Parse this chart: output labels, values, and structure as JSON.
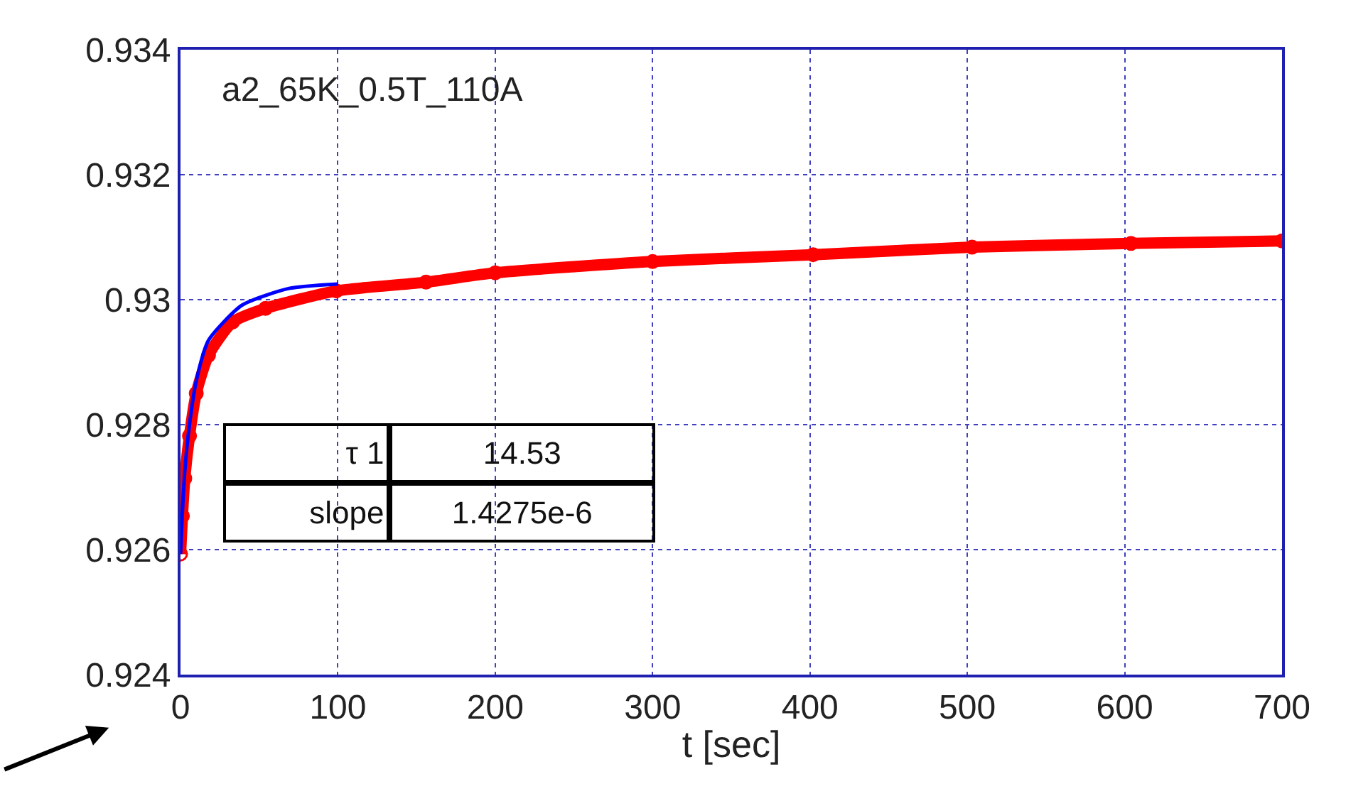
{
  "chart_data": {
    "type": "line",
    "xlabel": "t [sec]",
    "xlim": [
      0,
      700
    ],
    "xticks": [
      0,
      100,
      200,
      300,
      400,
      500,
      600,
      700
    ],
    "ylim": [
      0.924,
      0.934
    ],
    "yticks": [
      0.924,
      0.926,
      0.928,
      0.93,
      0.932,
      0.934
    ],
    "grid": true,
    "series": [
      {
        "color": "#ff0000",
        "marker": "circle",
        "x": [
          0,
          1.2,
          2.7,
          5.7,
          10,
          17.8,
          33,
          54,
          99,
          156,
          200,
          300,
          402,
          503,
          604,
          700
        ],
        "values": [
          0.92593,
          0.92654,
          0.92714,
          0.92782,
          0.9285,
          0.92911,
          0.92964,
          0.92986,
          0.93014,
          0.93028,
          0.93043,
          0.93061,
          0.93072,
          0.93084,
          0.9309,
          0.93094
        ]
      },
      {
        "color": "#0000ff",
        "marker": "none",
        "x": [
          0,
          1.2,
          2.7,
          5.7,
          10,
          17.8,
          39,
          69,
          100
        ],
        "values": [
          0.92593,
          0.9266,
          0.92725,
          0.928,
          0.9287,
          0.92935,
          0.92991,
          0.93018,
          0.93025
        ]
      }
    ],
    "annotations": [
      "a2_65K_0.5T_110A",
      "τ 1",
      "14.53",
      "slope",
      "1.4275e-6"
    ]
  }
}
